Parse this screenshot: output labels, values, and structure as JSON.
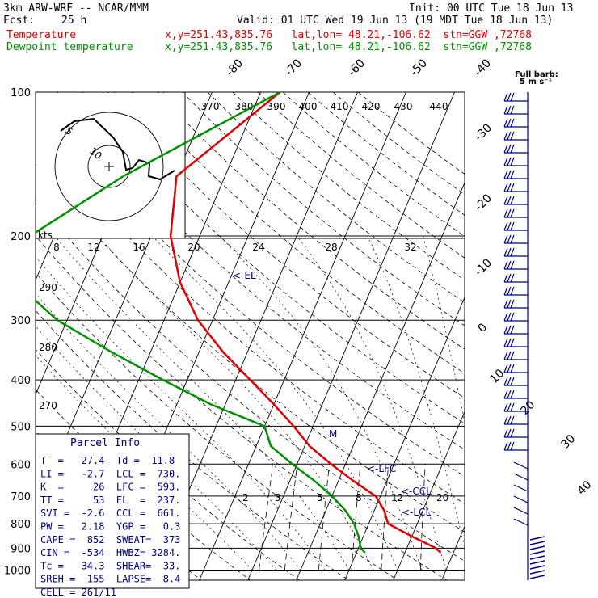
{
  "header": {
    "model": "3km ARW-WRF -- NCAR/MMM",
    "init": "Init: 00 UTC Tue 18 Jun 13",
    "fcst_label": "Fcst:",
    "fcst_value": "25 h",
    "valid": "Valid: 01 UTC Wed 19 Jun 13 (19 MDT Tue 18 Jun 13)",
    "temp_label": "Temperature",
    "temp_loc": "x,y=251.43,835.76   lat,lon= 48.21,-106.62  stn=GGW ,72768",
    "dew_label": "Dewpoint temperature",
    "dew_loc": "x,y=251.43,835.76   lat,lon= 48.21,-106.62  stn=GGW ,72768"
  },
  "colors": {
    "temperature": "#e00000",
    "dewpoint": "#009000",
    "parcel_text": "#000080",
    "hodograph": "#000000",
    "barbs": "#000080"
  },
  "chart_data": {
    "type": "line",
    "subtype": "skew-T log-P sounding",
    "pressure_levels": [
      "100",
      "200",
      "300",
      "400",
      "500",
      "600",
      "700",
      "800",
      "900",
      "1000"
    ],
    "pressure_values": [
      100,
      200,
      300,
      400,
      500,
      600,
      700,
      800,
      900,
      1000
    ],
    "skewed_temp_labels": [
      "-80",
      "-70",
      "-60",
      "-50",
      "-40",
      "-30",
      "-20",
      "-10",
      "0",
      "10",
      "20",
      "30",
      "40"
    ],
    "skewed_temp_values": [
      -80,
      -70,
      -60,
      -50,
      -40,
      -30,
      -20,
      -10,
      0,
      10,
      20,
      30,
      40
    ],
    "theta_labels_top": [
      "370",
      "380",
      "390",
      "400",
      "410",
      "420",
      "430",
      "440"
    ],
    "theta_labels_left": [
      "290",
      "280",
      "270"
    ],
    "mixing_ratio_labels": [
      "2",
      "3",
      "5",
      "8",
      "12",
      "20"
    ],
    "hodo_speed_labels": [
      "8",
      "12",
      "16",
      "20",
      "24",
      "28",
      "32"
    ],
    "hodo_units": "kts",
    "hodo_ring_labels": [
      "5",
      "10"
    ],
    "barb_legend": "Full barb:\n5 m s⁻¹",
    "annotations": {
      "el": "<-EL",
      "lfc": "<-LFC",
      "ccl": "<-CCL",
      "lcl": "<-LCL",
      "m": "M"
    },
    "series": [
      {
        "name": "Temperature",
        "pressure": [
          100,
          150,
          200,
          250,
          300,
          350,
          400,
          450,
          500,
          550,
          600,
          650,
          700,
          750,
          800,
          850,
          900,
          920
        ],
        "temp": [
          -46,
          -60,
          -56,
          -50,
          -43,
          -35,
          -27,
          -20,
          -14,
          -9,
          -3,
          3,
          9,
          12,
          14,
          20,
          26,
          27.4
        ]
      },
      {
        "name": "Dewpoint temperature",
        "pressure": [
          100,
          150,
          200,
          250,
          300,
          350,
          400,
          450,
          500,
          550,
          600,
          650,
          700,
          750,
          800,
          850,
          900,
          920
        ],
        "temp": [
          -46,
          -71,
          -85,
          -84,
          -72,
          -58,
          -45,
          -33,
          -20,
          -17,
          -11,
          -5,
          0,
          4,
          7,
          9,
          10.5,
          11.8
        ]
      }
    ]
  },
  "parcel": {
    "title": "Parcel Info",
    "rows": [
      "T  =   27.4  Td =  11.8",
      "LI =   -2.7  LCL =  730.",
      "K  =     26  LFC =  593.",
      "TT =     53  EL  =  237.",
      "SVI =  -2.6  CCL =  661.",
      "PW =   2.18  YGP =   0.3",
      "CAPE =  852  SWEAT=  373",
      "CIN =  -534  HWBZ= 3284.",
      "Tc =   34.3  SHEAR=  33.",
      "SREH =  155  LAPSE=  8.4",
      "CELL = 261/11"
    ]
  }
}
